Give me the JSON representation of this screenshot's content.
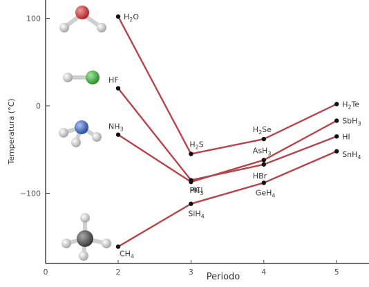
{
  "chart_data": {
    "type": "line",
    "title": "",
    "xlabel": "Periodo",
    "ylabel": "Temperatura (°C)",
    "xlim": [
      0,
      5.3
    ],
    "ylim": [
      -180,
      110
    ],
    "xticks": [
      0,
      2,
      3,
      4,
      5
    ],
    "yticks": [
      100,
      0,
      -100
    ],
    "ytick_labels": [
      "100",
      "0",
      "−100"
    ],
    "grid": false,
    "line_color": "#b8434a",
    "point_color": "#111111",
    "series": [
      {
        "x": [
          2,
          3,
          4,
          5
        ],
        "y": [
          102,
          -55,
          -38,
          2
        ],
        "labels": [
          {
            "text": "H",
            "sub": "2",
            "tail": "O"
          },
          {
            "text": "H",
            "sub": "2",
            "tail": "S"
          },
          {
            "text": "H",
            "sub": "2",
            "tail": "Se"
          },
          {
            "text": "H",
            "sub": "2",
            "tail": "Te"
          }
        ]
      },
      {
        "x": [
          2,
          3,
          4,
          5
        ],
        "y": [
          20,
          -85,
          -67,
          -35
        ],
        "labels": [
          {
            "text": "HF",
            "sub": "",
            "tail": ""
          },
          {
            "text": "HCl",
            "sub": "",
            "tail": ""
          },
          {
            "text": "HBr",
            "sub": "",
            "tail": ""
          },
          {
            "text": "HI",
            "sub": "",
            "tail": ""
          }
        ]
      },
      {
        "x": [
          2,
          3,
          4,
          5
        ],
        "y": [
          -33,
          -87,
          -62,
          -17
        ],
        "labels": [
          {
            "text": "NH",
            "sub": "3",
            "tail": ""
          },
          {
            "text": "PH",
            "sub": "3",
            "tail": ""
          },
          {
            "text": "AsH",
            "sub": "3",
            "tail": ""
          },
          {
            "text": "SbH",
            "sub": "3",
            "tail": ""
          }
        ]
      },
      {
        "x": [
          2,
          3,
          4,
          5
        ],
        "y": [
          -161,
          -112,
          -88,
          -52
        ],
        "labels": [
          {
            "text": "CH",
            "sub": "4",
            "tail": ""
          },
          {
            "text": "SiH",
            "sub": "4",
            "tail": ""
          },
          {
            "text": "GeH",
            "sub": "4",
            "tail": ""
          },
          {
            "text": "SnH",
            "sub": "4",
            "tail": ""
          }
        ]
      }
    ]
  },
  "molecule_icons": [
    {
      "name": "water-molecule-icon",
      "center_color": "#c8383a",
      "outer_color": "#dcdcdc"
    },
    {
      "name": "hydrogen-fluoride-molecule-icon",
      "center_color": "#3aa83a",
      "outer_color": "#dcdcdc"
    },
    {
      "name": "ammonia-molecule-icon",
      "center_color": "#3a64b4",
      "outer_color": "#dcdcdc"
    },
    {
      "name": "methane-molecule-icon",
      "center_color": "#555555",
      "outer_color": "#dcdcdc"
    }
  ]
}
